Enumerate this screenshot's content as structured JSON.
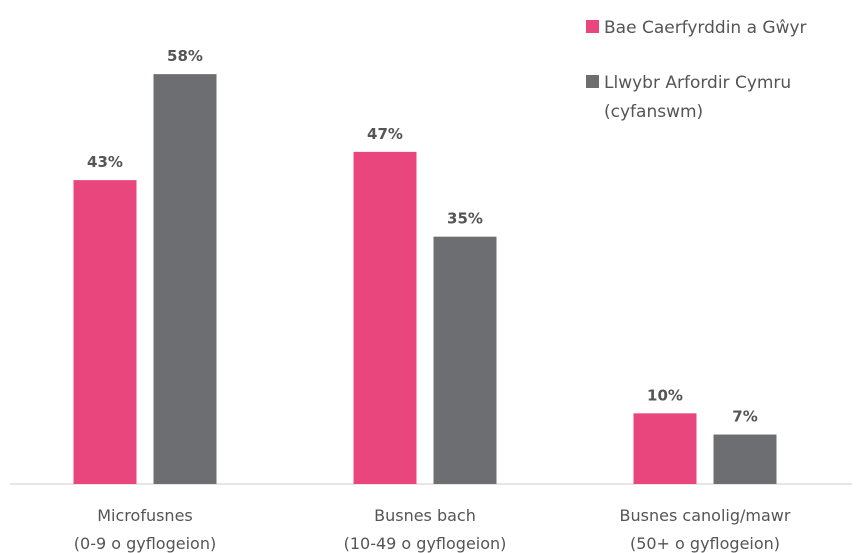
{
  "chart_data": {
    "type": "bar",
    "categories": [
      [
        "Microfusnes",
        "(0-9 o gyflogeion)"
      ],
      [
        "Busnes bach",
        "(10-49 o gyflogeion)"
      ],
      [
        "Busnes canolig/mawr",
        "(50+ o gyflogeion)"
      ]
    ],
    "series": [
      {
        "name": "Bae Caerfyrddin a Gŵyr",
        "color": "#e8467c",
        "values": [
          43,
          47,
          10
        ],
        "value_labels": [
          "43%",
          "47%",
          "10%"
        ]
      },
      {
        "name": "Llwybr Arfordir Cymru (cyfanswm)",
        "color": "#6d6e71",
        "values": [
          58,
          35,
          7
        ],
        "value_labels": [
          "58%",
          "35%",
          "7%"
        ]
      }
    ],
    "ylim": [
      0,
      60
    ],
    "legend": "top-right"
  }
}
